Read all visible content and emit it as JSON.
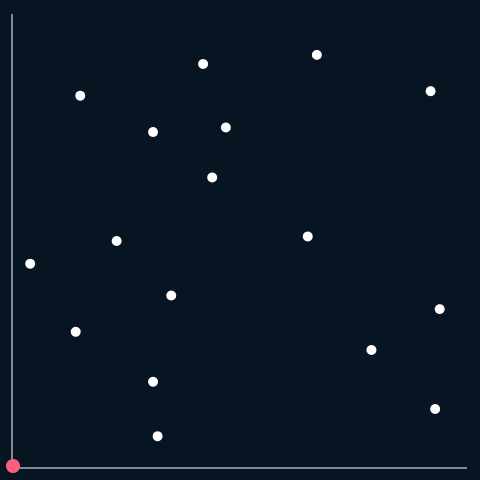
{
  "colors": {
    "background": "#071421",
    "axis": "#ffffff",
    "point": "#ffffff",
    "marker": "#ff5f7e"
  },
  "chart_data": {
    "type": "scatter",
    "title": "",
    "xlabel": "",
    "ylabel": "",
    "grid": false,
    "xlim": [
      0,
      100
    ],
    "ylim": [
      0,
      100
    ],
    "points": [
      {
        "x": 15,
        "y": 82
      },
      {
        "x": 42,
        "y": 89
      },
      {
        "x": 67,
        "y": 91
      },
      {
        "x": 92,
        "y": 83
      },
      {
        "x": 31,
        "y": 74
      },
      {
        "x": 47,
        "y": 75
      },
      {
        "x": 44,
        "y": 64
      },
      {
        "x": 23,
        "y": 50
      },
      {
        "x": 65,
        "y": 51
      },
      {
        "x": 4,
        "y": 45
      },
      {
        "x": 35,
        "y": 38
      },
      {
        "x": 94,
        "y": 35
      },
      {
        "x": 14,
        "y": 30
      },
      {
        "x": 79,
        "y": 26
      },
      {
        "x": 31,
        "y": 19
      },
      {
        "x": 93,
        "y": 13
      },
      {
        "x": 32,
        "y": 7
      }
    ],
    "highlight": {
      "x": 0,
      "y": 0
    }
  }
}
